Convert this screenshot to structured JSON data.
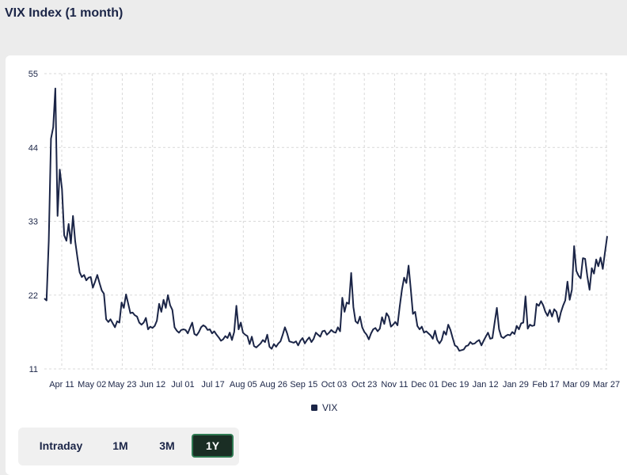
{
  "title": "VIX Index (1 month)",
  "range_buttons": [
    {
      "label": "Intraday",
      "active": false
    },
    {
      "label": "1M",
      "active": false
    },
    {
      "label": "3M",
      "active": false
    },
    {
      "label": "1Y",
      "active": true
    }
  ],
  "colors": {
    "line": "#1b2547",
    "active_button_bg": "#1a2e24",
    "active_button_border": "#2f7a52",
    "grid": "#d9d9d9"
  },
  "chart_data": {
    "type": "line",
    "ylim": [
      11,
      55
    ],
    "y_ticks": [
      11,
      22,
      33,
      44,
      55
    ],
    "x_tick_labels": [
      "Apr 11",
      "May 02",
      "May 23",
      "Jun 12",
      "Jul 01",
      "Jul 17",
      "Aug 05",
      "Aug 26",
      "Sep 15",
      "Oct 03",
      "Oct 23",
      "Nov 11",
      "Dec 01",
      "Dec 19",
      "Jan 12",
      "Jan 29",
      "Feb 17",
      "Mar 09",
      "Mar 27"
    ],
    "grid": true,
    "legend_position": "bottom",
    "series": [
      {
        "name": "VIX",
        "values": [
          21.5,
          21.2,
          30.1,
          45.3,
          47.0,
          52.8,
          33.8,
          40.7,
          37.8,
          30.9,
          30.1,
          32.6,
          29.7,
          33.8,
          30.0,
          27.6,
          25.4,
          24.7,
          25.0,
          24.2,
          24.6,
          24.7,
          23.1,
          24.0,
          25.0,
          23.8,
          22.7,
          22.2,
          18.4,
          18.0,
          18.4,
          17.8,
          17.2,
          18.1,
          17.9,
          20.9,
          20.1,
          22.1,
          20.7,
          19.3,
          19.4,
          19.0,
          18.8,
          17.9,
          17.6,
          17.9,
          18.6,
          16.9,
          17.3,
          17.1,
          17.4,
          18.2,
          20.7,
          19.5,
          21.3,
          20.1,
          22.0,
          20.5,
          19.8,
          17.2,
          16.7,
          16.4,
          16.8,
          16.9,
          16.8,
          16.3,
          17.1,
          17.9,
          16.2,
          16.0,
          16.5,
          17.2,
          17.5,
          17.3,
          16.8,
          16.9,
          16.3,
          16.6,
          16.1,
          15.7,
          15.2,
          15.4,
          15.9,
          15.6,
          16.4,
          15.3,
          16.5,
          20.4,
          16.9,
          17.9,
          16.4,
          16.1,
          15.9,
          14.7,
          15.8,
          14.4,
          14.2,
          14.5,
          14.8,
          15.3,
          15.0,
          16.1,
          14.3,
          14.0,
          14.7,
          14.3,
          14.8,
          15.1,
          16.1,
          17.2,
          16.3,
          15.1,
          15.0,
          14.9,
          15.1,
          14.5,
          15.2,
          15.6,
          14.8,
          15.3,
          15.7,
          15.0,
          15.5,
          16.4,
          16.1,
          15.8,
          16.6,
          16.7,
          16.1,
          16.4,
          16.8,
          16.5,
          16.4,
          17.2,
          16.6,
          21.6,
          19.5,
          20.9,
          20.7,
          25.3,
          20.2,
          18.1,
          17.8,
          18.8,
          17.2,
          16.5,
          16.1,
          15.4,
          16.3,
          16.9,
          17.1,
          16.6,
          17.0,
          18.7,
          17.7,
          19.3,
          18.8,
          17.3,
          17.6,
          18.0,
          17.5,
          20.3,
          22.8,
          24.6,
          23.8,
          26.4,
          23.0,
          19.2,
          19.5,
          17.4,
          16.9,
          17.3,
          16.4,
          16.6,
          16.3,
          16.0,
          15.5,
          16.7,
          15.3,
          14.8,
          15.3,
          16.6,
          16.1,
          17.6,
          16.8,
          15.6,
          14.5,
          14.3,
          13.7,
          13.8,
          13.9,
          14.4,
          14.5,
          15.0,
          14.7,
          14.8,
          15.1,
          15.3,
          14.5,
          15.2,
          15.8,
          16.4,
          15.5,
          15.6,
          17.9,
          20.1,
          16.9,
          15.8,
          15.6,
          15.9,
          16.1,
          16.0,
          16.5,
          16.2,
          17.4,
          16.9,
          17.8,
          17.9,
          21.8,
          17.0,
          17.6,
          17.4,
          17.5,
          20.7,
          20.4,
          21.1,
          20.5,
          19.5,
          18.9,
          19.8,
          18.8,
          19.9,
          19.5,
          18.0,
          19.4,
          20.4,
          21.2,
          24.0,
          21.3,
          22.8,
          29.3,
          25.6,
          24.9,
          24.5,
          27.5,
          27.4,
          24.8,
          22.8,
          26.0,
          25.2,
          27.3,
          26.3,
          27.6,
          25.9,
          28.4,
          30.8
        ]
      }
    ]
  }
}
